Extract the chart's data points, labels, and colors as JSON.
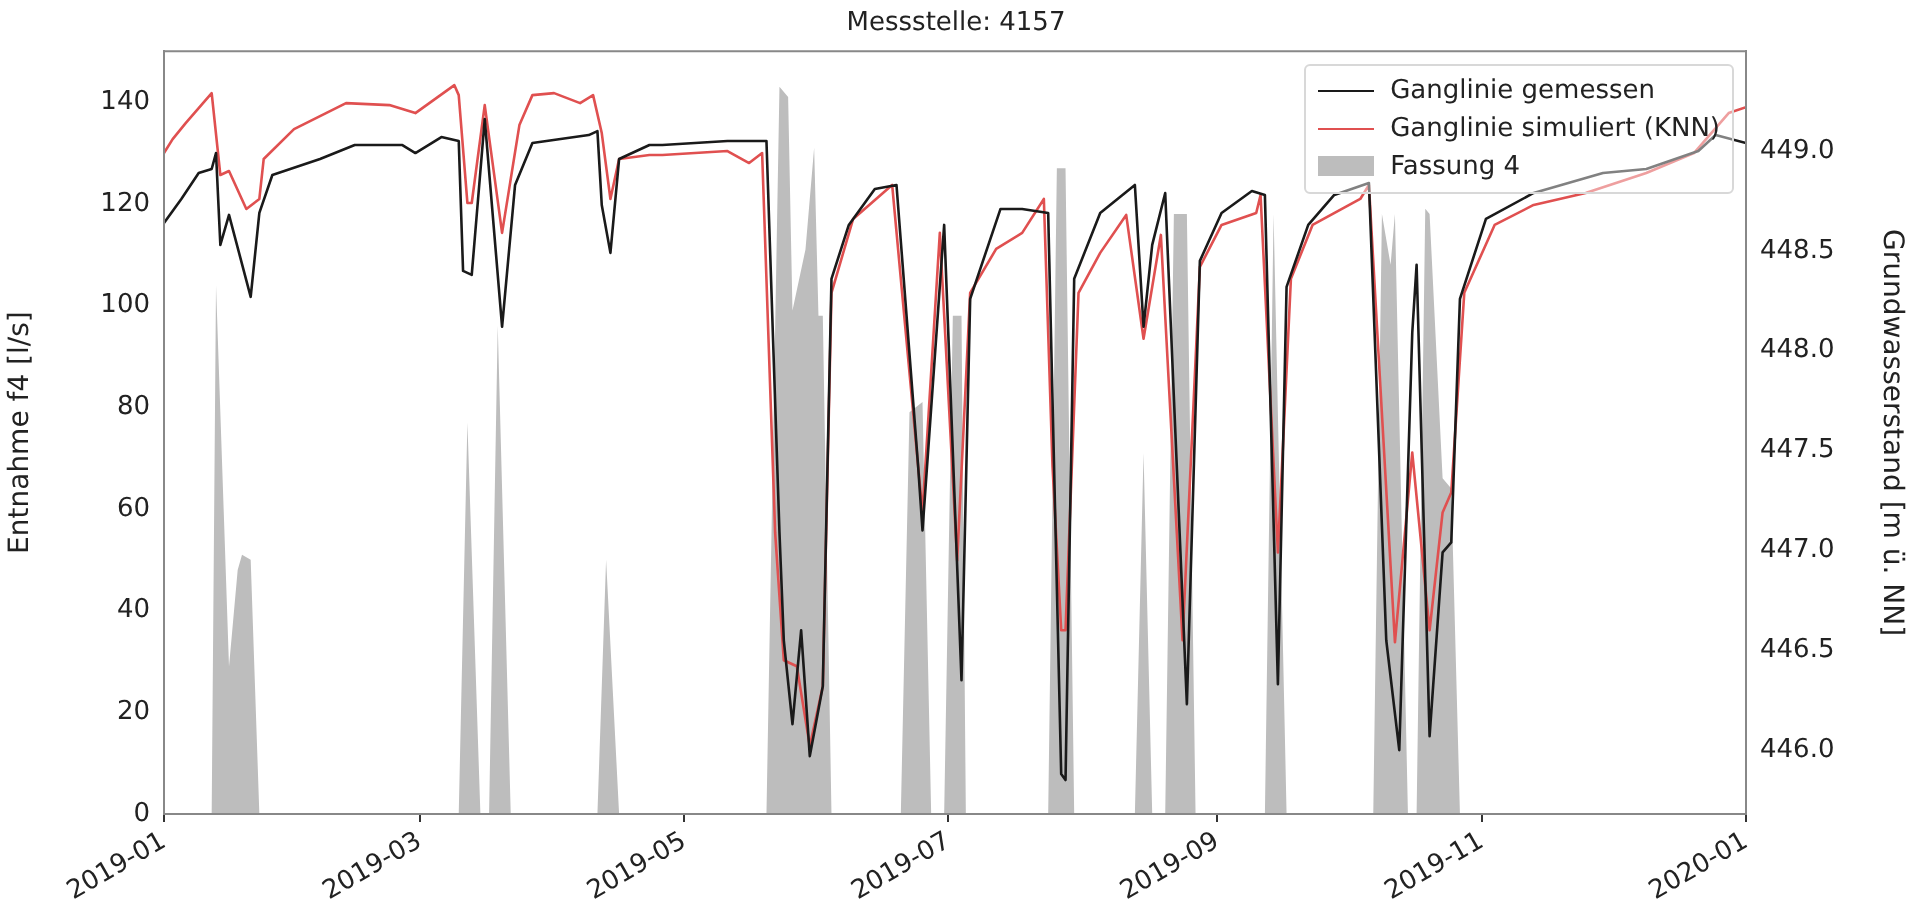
{
  "chart_data": {
    "type": "line",
    "title": "Messstelle: 4157",
    "ylabel": "Entnahme f4 [l/s]",
    "y2label": "Grundwasserstand [m ü. NN]",
    "xlim": [
      "2019-01-01",
      "2020-01-01"
    ],
    "xticks": [
      "2019-01",
      "2019-03",
      "2019-05",
      "2019-07",
      "2019-09",
      "2019-11",
      "2020-01"
    ],
    "ylim": [
      0,
      150
    ],
    "yticks": [
      0,
      20,
      40,
      60,
      80,
      100,
      120,
      140
    ],
    "y2lim": [
      445.68,
      449.5
    ],
    "y2ticks": [
      {
        "value": 446,
        "label": "446.0"
      },
      {
        "value": 446.5,
        "label": "446.5"
      },
      {
        "value": 447,
        "label": "447.0"
      },
      {
        "value": 447.5,
        "label": "447.5"
      },
      {
        "value": 448,
        "label": "448.0"
      },
      {
        "value": 448.5,
        "label": "448.5"
      },
      {
        "value": 449,
        "label": "449.0"
      }
    ],
    "legend": "top right",
    "grid": false,
    "marker": "none",
    "line_style": "solid",
    "series": [
      {
        "name": "Ganglinie gemessen",
        "type": "line",
        "axis": "y2",
        "color": "#1a1a1a",
        "x": [
          "2019-01-01",
          "2019-01-05",
          "2019-01-09",
          "2019-01-12",
          "2019-01-13",
          "2019-01-14",
          "2019-01-16",
          "2019-01-21",
          "2019-01-23",
          "2019-01-26",
          "2019-02-06",
          "2019-02-14",
          "2019-02-25",
          "2019-02-28",
          "2019-03-06",
          "2019-03-10",
          "2019-03-11",
          "2019-03-13",
          "2019-03-16",
          "2019-03-20",
          "2019-03-23",
          "2019-03-27",
          "2019-04-09",
          "2019-04-11",
          "2019-04-12",
          "2019-04-14",
          "2019-04-16",
          "2019-04-23",
          "2019-04-26",
          "2019-05-11",
          "2019-05-20",
          "2019-05-23",
          "2019-05-24",
          "2019-05-26",
          "2019-05-28",
          "2019-05-30",
          "2019-06-02",
          "2019-06-04",
          "2019-06-08",
          "2019-06-14",
          "2019-06-19",
          "2019-06-24",
          "2019-06-25",
          "2019-06-30",
          "2019-07-04",
          "2019-07-06",
          "2019-07-13",
          "2019-07-18",
          "2019-07-24",
          "2019-07-27",
          "2019-07-28",
          "2019-07-30",
          "2019-08-05",
          "2019-08-13",
          "2019-08-15",
          "2019-08-17",
          "2019-08-20",
          "2019-08-25",
          "2019-08-28",
          "2019-09-02",
          "2019-09-09",
          "2019-09-12",
          "2019-09-15",
          "2019-09-17",
          "2019-09-22",
          "2019-09-28",
          "2019-10-06",
          "2019-10-10",
          "2019-10-13",
          "2019-10-16",
          "2019-10-17",
          "2019-10-20",
          "2019-10-23",
          "2019-10-25",
          "2019-10-27",
          "2019-11-02",
          "2019-11-13",
          "2019-11-29",
          "2019-12-09",
          "2019-12-21",
          "2019-12-25",
          "2020-01-01"
        ],
        "values": [
          448.64,
          448.76,
          448.89,
          448.91,
          448.99,
          448.53,
          448.68,
          448.27,
          448.69,
          448.88,
          448.96,
          449.03,
          449.03,
          448.99,
          449.07,
          449.05,
          448.4,
          448.38,
          449.16,
          448.12,
          448.83,
          449.04,
          449.08,
          449.1,
          448.73,
          448.49,
          448.96,
          449.03,
          449.03,
          449.05,
          449.05,
          447.09,
          446.55,
          446.13,
          446.6,
          445.97,
          446.32,
          448.36,
          448.63,
          448.81,
          448.83,
          447.42,
          447.1,
          448.63,
          446.35,
          448.26,
          448.71,
          448.71,
          448.69,
          445.88,
          445.85,
          448.36,
          448.69,
          448.83,
          448.12,
          448.53,
          448.79,
          446.23,
          448.45,
          448.69,
          448.8,
          448.78,
          446.33,
          448.32,
          448.63,
          448.78,
          448.84,
          446.55,
          446.0,
          448.09,
          448.43,
          446.07,
          446.99,
          447.04,
          448.26,
          448.66,
          448.79,
          448.89,
          448.91,
          449.0,
          449.08,
          449.04
        ]
      },
      {
        "name": "Ganglinie simuliert (KNN)",
        "type": "line",
        "axis": "y2",
        "color": "#e05050",
        "x": [
          "2019-01-01",
          "2019-01-03",
          "2019-01-06",
          "2019-01-12",
          "2019-01-14",
          "2019-01-16",
          "2019-01-20",
          "2019-01-23",
          "2019-01-24",
          "2019-01-31",
          "2019-02-12",
          "2019-02-22",
          "2019-02-28",
          "2019-03-09",
          "2019-03-10",
          "2019-03-12",
          "2019-03-13",
          "2019-03-16",
          "2019-03-20",
          "2019-03-24",
          "2019-03-27",
          "2019-04-01",
          "2019-04-07",
          "2019-04-10",
          "2019-04-12",
          "2019-04-14",
          "2019-04-16",
          "2019-04-23",
          "2019-04-26",
          "2019-05-11",
          "2019-05-16",
          "2019-05-19",
          "2019-05-22",
          "2019-05-24",
          "2019-05-27",
          "2019-05-30",
          "2019-06-02",
          "2019-06-04",
          "2019-06-09",
          "2019-06-18",
          "2019-06-24",
          "2019-06-25",
          "2019-06-29",
          "2019-07-03",
          "2019-07-06",
          "2019-07-12",
          "2019-07-18",
          "2019-07-23",
          "2019-07-25",
          "2019-07-27",
          "2019-07-28",
          "2019-07-31",
          "2019-08-05",
          "2019-08-11",
          "2019-08-15",
          "2019-08-19",
          "2019-08-24",
          "2019-08-28",
          "2019-09-02",
          "2019-09-10",
          "2019-09-11",
          "2019-09-15",
          "2019-09-18",
          "2019-09-23",
          "2019-10-04",
          "2019-10-06",
          "2019-10-12",
          "2019-10-16",
          "2019-10-20",
          "2019-10-23",
          "2019-10-25",
          "2019-10-28",
          "2019-11-04",
          "2019-11-13",
          "2019-11-25",
          "2019-12-09",
          "2019-12-20",
          "2019-12-28",
          "2020-01-01"
        ],
        "values": [
          448.99,
          449.06,
          449.14,
          449.29,
          448.88,
          448.9,
          448.71,
          448.76,
          448.96,
          449.11,
          449.24,
          449.23,
          449.19,
          449.33,
          449.28,
          448.74,
          448.74,
          449.23,
          448.59,
          449.13,
          449.28,
          449.29,
          449.24,
          449.28,
          449.09,
          448.76,
          448.96,
          448.98,
          448.98,
          449.0,
          448.94,
          448.99,
          447.09,
          446.45,
          446.42,
          446.02,
          446.32,
          448.29,
          448.66,
          448.83,
          447.42,
          447.19,
          448.59,
          446.95,
          448.29,
          448.51,
          448.59,
          448.76,
          447.42,
          446.6,
          446.6,
          448.29,
          448.49,
          448.68,
          448.06,
          448.58,
          446.55,
          448.42,
          448.63,
          448.69,
          448.78,
          446.99,
          448.36,
          448.63,
          448.76,
          448.83,
          446.54,
          447.49,
          446.6,
          447.19,
          447.29,
          448.29,
          448.63,
          448.73,
          448.79,
          448.89,
          448.99,
          449.19,
          449.22
        ]
      },
      {
        "name": "Fassung 4",
        "type": "area",
        "axis": "y",
        "color": "#bdbdbd",
        "x": [
          "2019-01-01",
          "2019-01-12",
          "2019-01-13",
          "2019-01-16",
          "2019-01-18",
          "2019-01-19",
          "2019-01-21",
          "2019-01-23",
          "2019-03-10",
          "2019-03-12",
          "2019-03-15",
          "2019-03-17",
          "2019-03-19",
          "2019-03-22",
          "2019-04-11",
          "2019-04-13",
          "2019-04-16",
          "2019-05-20",
          "2019-05-23",
          "2019-05-25",
          "2019-05-26",
          "2019-05-29",
          "2019-05-31",
          "2019-06-01",
          "2019-06-02",
          "2019-06-04",
          "2019-06-20",
          "2019-06-22",
          "2019-06-25",
          "2019-06-27",
          "2019-06-30",
          "2019-07-02",
          "2019-07-04",
          "2019-07-05",
          "2019-07-24",
          "2019-07-26",
          "2019-07-28",
          "2019-07-30",
          "2019-08-13",
          "2019-08-15",
          "2019-08-17",
          "2019-08-20",
          "2019-08-22",
          "2019-08-25",
          "2019-08-27",
          "2019-09-12",
          "2019-09-14",
          "2019-09-17",
          "2019-10-07",
          "2019-10-09",
          "2019-10-11",
          "2019-10-12",
          "2019-10-15",
          "2019-10-17",
          "2019-10-19",
          "2019-10-20",
          "2019-10-23",
          "2019-10-25",
          "2019-10-27",
          "2020-01-01"
        ],
        "values": [
          0,
          0,
          104,
          29,
          48,
          51,
          50,
          0,
          0,
          77,
          0,
          0,
          96,
          0,
          0,
          50,
          0,
          0,
          143,
          141,
          99,
          111,
          131,
          98,
          98,
          0,
          0,
          79,
          81,
          0,
          0,
          98,
          98,
          0,
          0,
          127,
          127,
          0,
          0,
          71,
          0,
          0,
          118,
          118,
          0,
          0,
          118,
          0,
          0,
          118,
          108,
          118,
          0,
          0,
          119,
          118,
          66,
          64,
          0,
          0
        ]
      }
    ]
  }
}
